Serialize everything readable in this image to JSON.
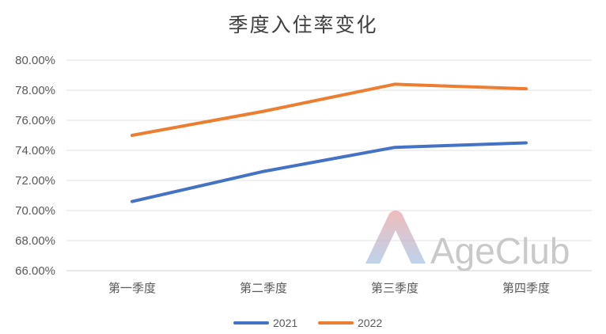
{
  "watermark": {
    "text": "AgeClub",
    "logo": "ageclub-logo-icon"
  },
  "chart_data": {
    "type": "line",
    "title": "季度入住率变化",
    "categories": [
      "第一季度",
      "第二季度",
      "第三季度",
      "第四季度"
    ],
    "y_tick_labels": [
      "66.00%",
      "68.00%",
      "70.00%",
      "72.00%",
      "74.00%",
      "76.00%",
      "78.00%",
      "80.00%"
    ],
    "ylim": [
      66,
      80
    ],
    "y_unit": "%",
    "grid": true,
    "legend_position": "bottom",
    "series": [
      {
        "name": "2021",
        "color": "#4472c4",
        "values": [
          70.6,
          72.6,
          74.2,
          74.5
        ]
      },
      {
        "name": "2022",
        "color": "#ed7d31",
        "values": [
          75.0,
          76.6,
          78.4,
          78.1
        ]
      }
    ]
  }
}
